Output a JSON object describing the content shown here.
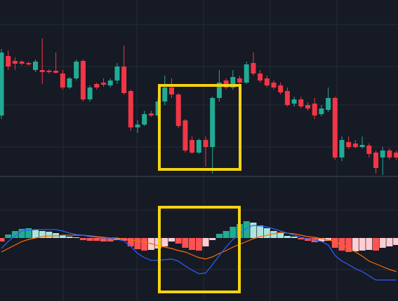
{
  "chart_data": [
    {
      "type": "candlestick",
      "open": [
        85,
        170,
        163,
        162,
        160,
        150,
        150,
        149,
        149,
        145,
        125,
        138,
        163,
        108,
        130,
        132,
        128,
        135,
        155,
        120,
        68,
        72,
        88,
        85,
        105,
        125,
        115,
        78,
        50,
        32,
        50,
        40,
        110,
        135,
        125,
        138,
        132,
        160,
        145,
        138,
        132,
        128,
        120,
        102,
        108,
        100,
        102,
        87,
        93,
        110,
        25,
        47,
        45,
        40,
        42,
        32,
        25,
        35,
        32
      ],
      "high": [
        180,
        178,
        168,
        164,
        162,
        165,
        195,
        151,
        175,
        150,
        140,
        165,
        165,
        128,
        132,
        138,
        138,
        160,
        185,
        122,
        78,
        92,
        92,
        110,
        142,
        138,
        117,
        80,
        55,
        52,
        55,
        112,
        150,
        138,
        150,
        142,
        162,
        175,
        150,
        142,
        135,
        132,
        125,
        112,
        112,
        104,
        110,
        100,
        125,
        112,
        55,
        55,
        50,
        55,
        45,
        35,
        40,
        38,
        35
      ],
      "low": [
        80,
        150,
        150,
        157,
        156,
        147,
        130,
        145,
        145,
        122,
        123,
        135,
        105,
        105,
        122,
        126,
        125,
        130,
        115,
        63,
        60,
        70,
        83,
        82,
        100,
        110,
        67,
        32,
        30,
        30,
        12,
        2,
        105,
        122,
        122,
        129,
        130,
        142,
        132,
        125,
        122,
        115,
        98,
        98,
        95,
        92,
        80,
        84,
        90,
        22,
        20,
        37,
        38,
        38,
        25,
        2,
        0,
        22,
        22
      ],
      "close": [
        175,
        155,
        159,
        159,
        158,
        162,
        147,
        147,
        146,
        125,
        138,
        162,
        108,
        125,
        125,
        129,
        135,
        155,
        117,
        68,
        72,
        87,
        85,
        105,
        125,
        115,
        70,
        35,
        32,
        50,
        40,
        110,
        132,
        125,
        140,
        132,
        158,
        145,
        135,
        128,
        125,
        118,
        100,
        108,
        98,
        95,
        85,
        95,
        110,
        25,
        50,
        40,
        40,
        43,
        30,
        10,
        35,
        25,
        25
      ],
      "ylim": [
        0,
        250
      ],
      "up_color": "#22ab94",
      "down_color": "#f23645"
    },
    {
      "type": "macd",
      "histogram": [
        -5,
        5,
        10,
        13,
        14,
        12,
        10,
        9,
        7,
        4,
        2,
        1,
        -3,
        -4,
        -4,
        -5,
        -5,
        -3,
        -4,
        -12,
        -16,
        -18,
        -17,
        -15,
        -12,
        -5,
        -8,
        -14,
        -17,
        -18,
        -12,
        -3,
        6,
        10,
        16,
        20,
        24,
        22,
        18,
        14,
        10,
        7,
        3,
        2,
        -2,
        -4,
        -6,
        -5,
        -4,
        -14,
        -18,
        -20,
        -19,
        -18,
        -17,
        -18,
        -14,
        -12,
        -10
      ],
      "macd": [
        -15,
        -5,
        3,
        10,
        11,
        12,
        12,
        12,
        12,
        10,
        7,
        5,
        4,
        2,
        1,
        0,
        0,
        -2,
        -4,
        -12,
        -22,
        -28,
        -32,
        -32,
        -31,
        -30,
        -33,
        -40,
        -46,
        -51,
        -50,
        -38,
        -25,
        -13,
        -2,
        6,
        14,
        18,
        17,
        16,
        13,
        10,
        7,
        4,
        1,
        -1,
        -3,
        -5,
        -10,
        -25,
        -33,
        -38,
        -44,
        -48,
        -54,
        -60,
        -60,
        -60,
        -60
      ],
      "signal": [
        -20,
        -15,
        -10,
        -5,
        -2,
        0,
        2,
        3,
        3,
        4,
        4,
        4,
        4,
        3,
        2,
        1,
        0,
        0,
        -2,
        -3,
        -4,
        -6,
        -8,
        -11,
        -13,
        -15,
        -18,
        -20,
        -24,
        -28,
        -30,
        -27,
        -22,
        -18,
        -13,
        -9,
        -5,
        -1,
        2,
        4,
        6,
        8,
        7,
        6,
        4,
        2,
        1,
        -1,
        -3,
        -5,
        -10,
        -14,
        -20,
        -26,
        -33,
        -37,
        -41,
        -45,
        -48
      ],
      "ylim": [
        -90,
        85
      ],
      "macd_color": "#2962ff",
      "signal_color": "#ff6d00",
      "pos_rising_color": "#22ab94",
      "pos_falling_color": "#ace5dc",
      "neg_falling_color": "#ff5252",
      "neg_rising_color": "#ffcdd2"
    }
  ]
}
